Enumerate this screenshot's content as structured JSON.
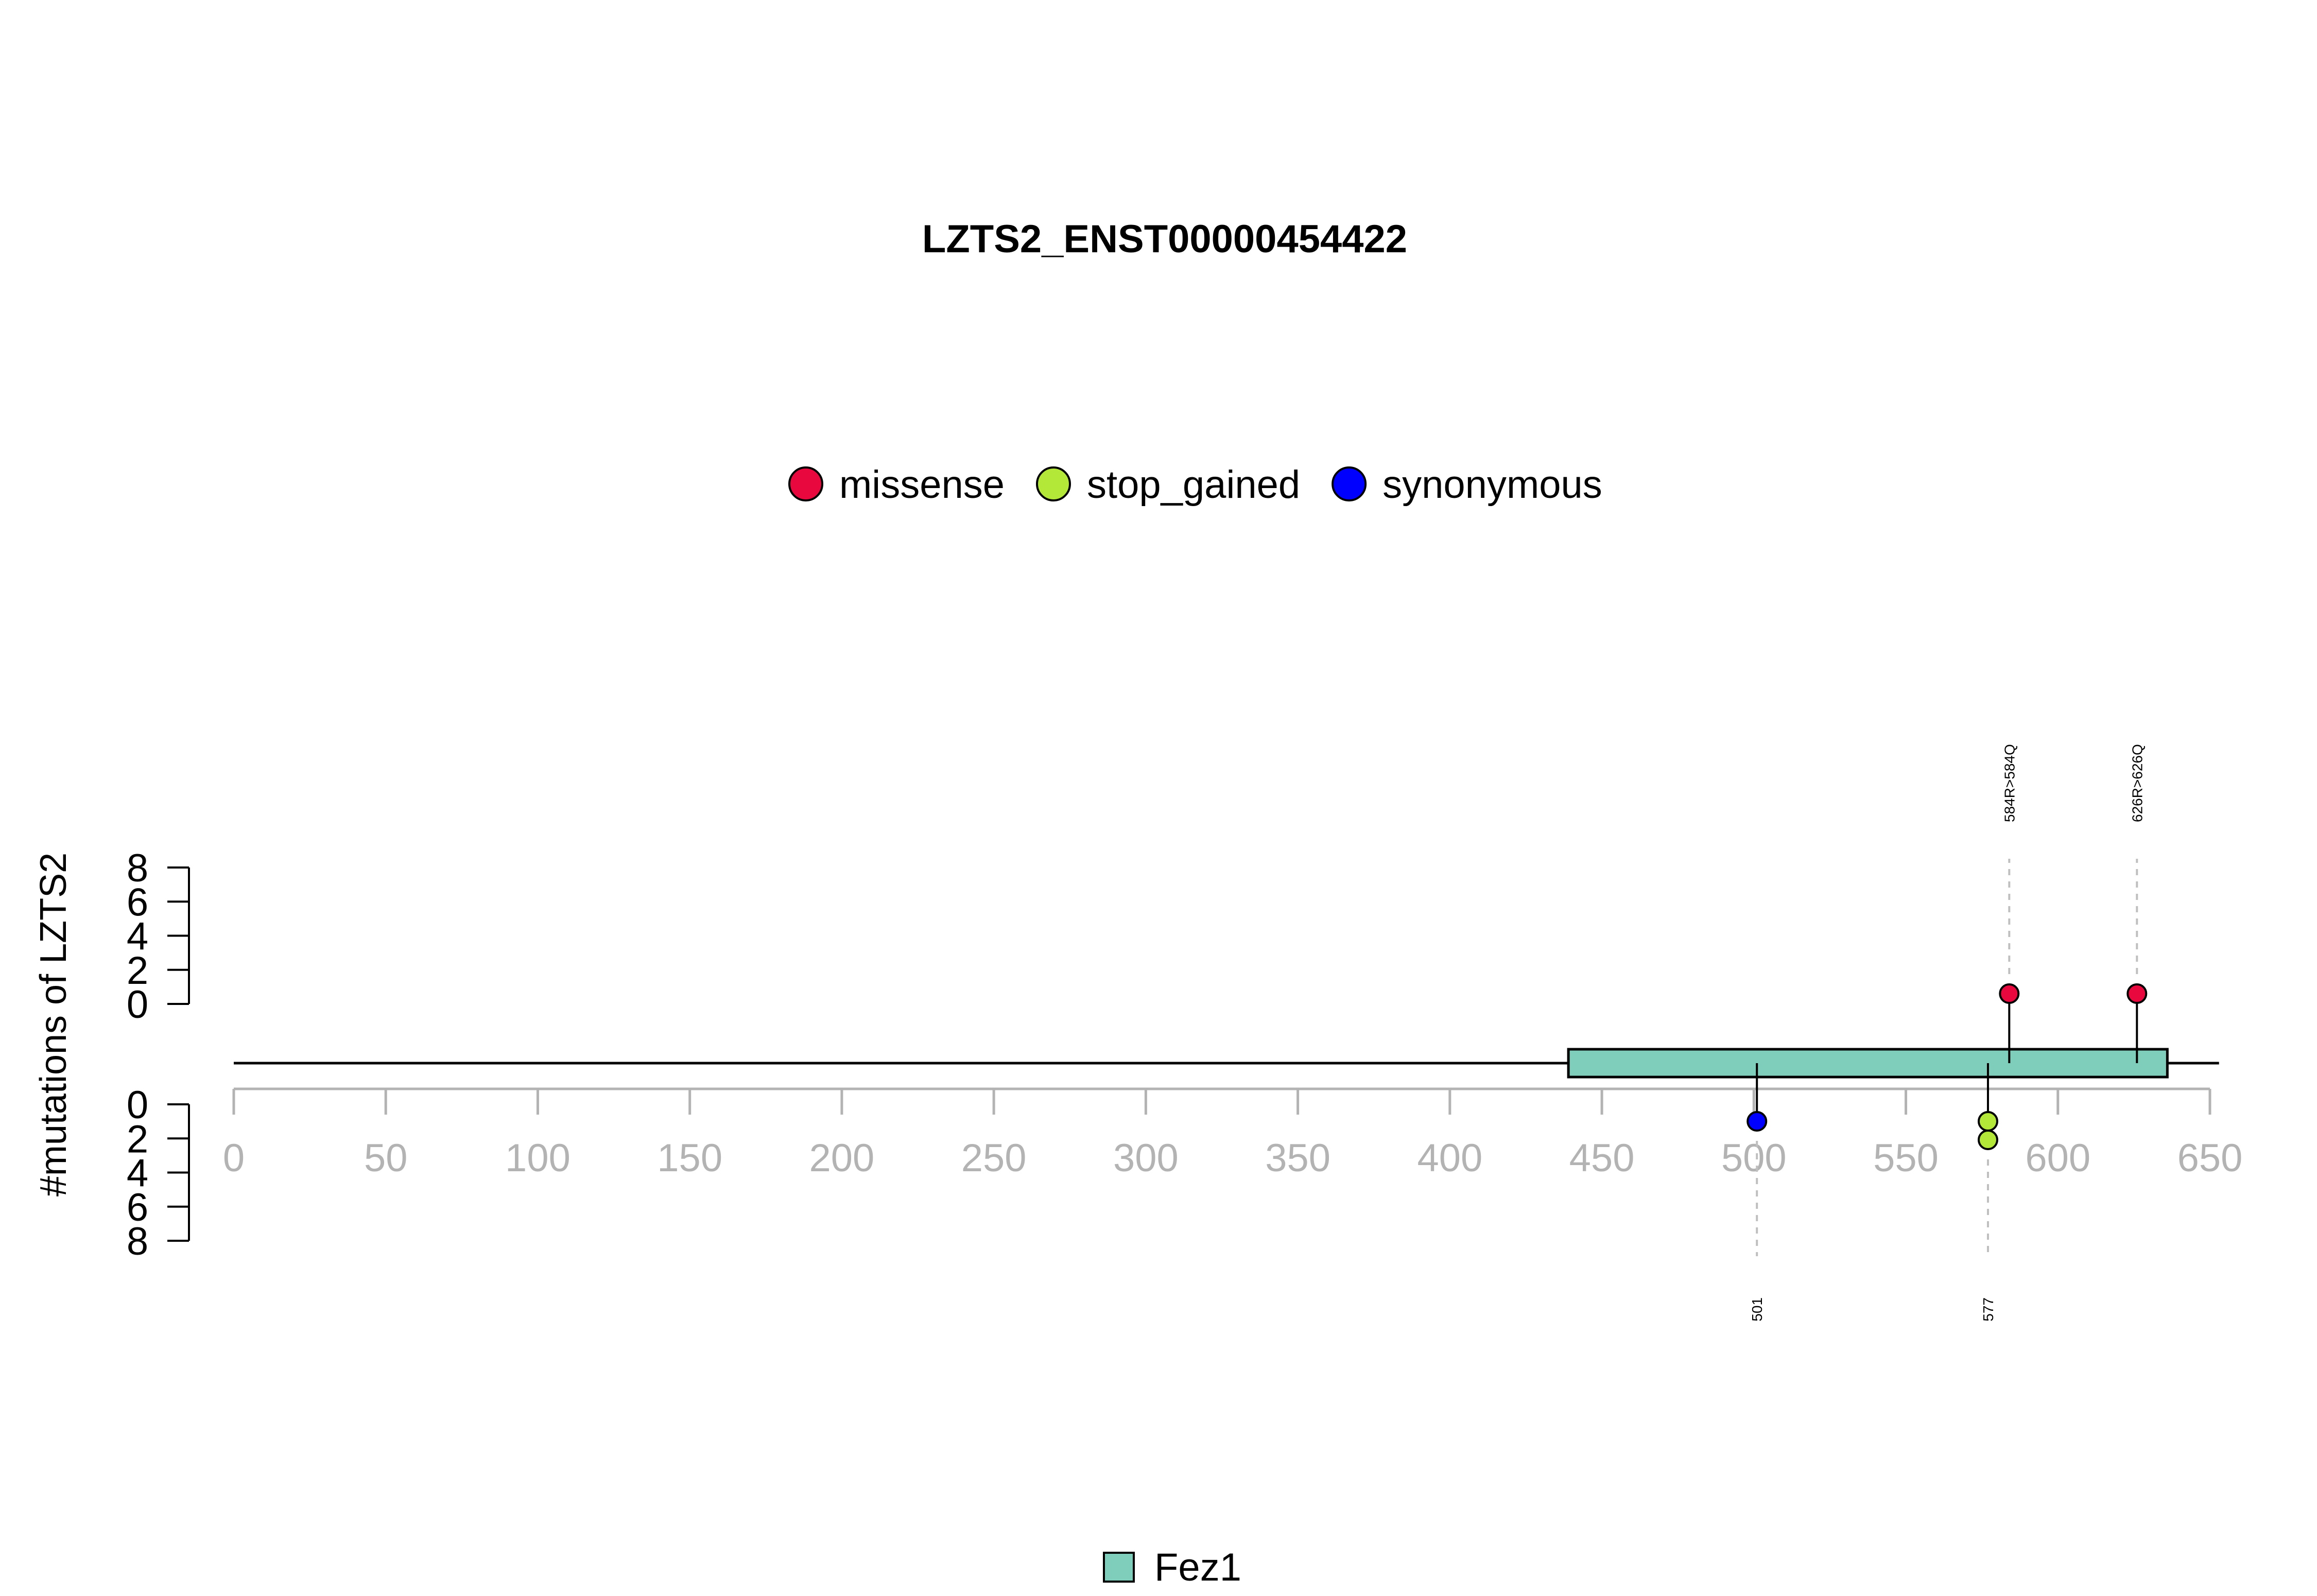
{
  "chart_data": {
    "type": "lollipop",
    "title": "LZTS2_ENST00000454422",
    "ylabel": "#mutations of LZTS2",
    "xlim": [
      0,
      650
    ],
    "x_ticks": [
      0,
      50,
      100,
      150,
      200,
      250,
      300,
      350,
      400,
      450,
      500,
      550,
      600,
      650
    ],
    "protein_length": 653,
    "y_ticks_upper": [
      8,
      6,
      4,
      2,
      0
    ],
    "y_ticks_lower": [
      0,
      2,
      4,
      6,
      8
    ],
    "legend_top": [
      {
        "label": "missense",
        "color": "#e8083e"
      },
      {
        "label": "stop_gained",
        "color": "#b3e838"
      },
      {
        "label": "synonymous",
        "color": "#0000ff"
      }
    ],
    "domains": [
      {
        "name": "Fez1",
        "start": 439,
        "end": 636,
        "color": "#7fcdbb"
      }
    ],
    "legend_bottom": [
      {
        "label": "Fez1",
        "color": "#7fcdbb"
      }
    ],
    "mutations_upper": [
      {
        "position": 584,
        "label": "584R>584Q",
        "type": "missense",
        "count": 1
      },
      {
        "position": 626,
        "label": "626R>626Q",
        "type": "missense",
        "count": 1
      }
    ],
    "mutations_lower": [
      {
        "position": 501,
        "label": "501",
        "type": "synonymous",
        "count": 1
      },
      {
        "position": 577,
        "label": "577",
        "type": "stop_gained",
        "count": 2
      }
    ]
  }
}
